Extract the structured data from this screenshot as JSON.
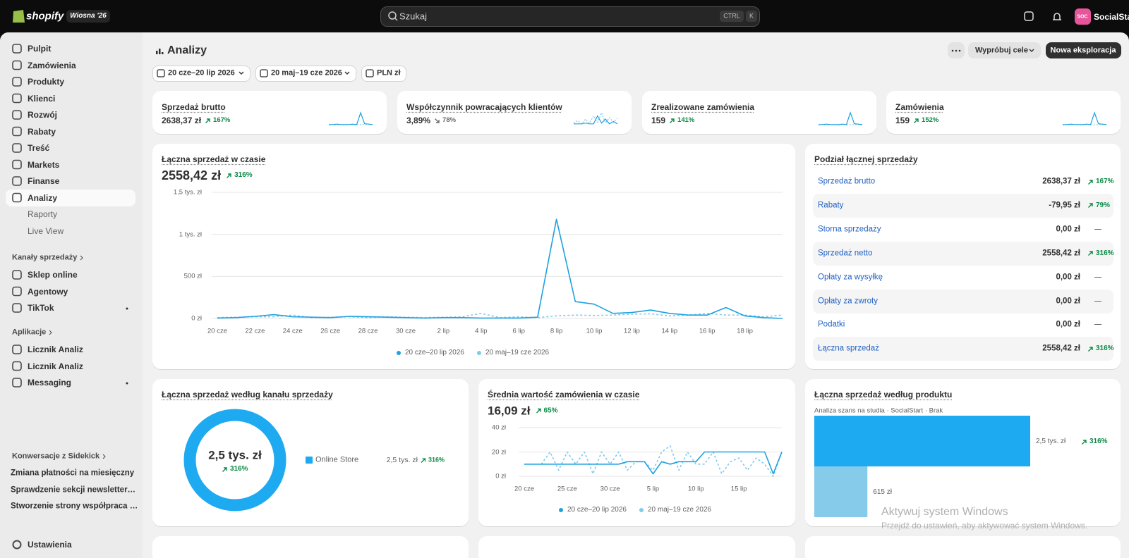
{
  "topbar": {
    "brand": "shopify",
    "badge": "Wiosna '26",
    "search": "Szukaj",
    "shortcut": [
      "CTRL",
      "K"
    ],
    "avatar": "SOC",
    "store": "SocialStart"
  },
  "sidebar": {
    "items": [
      "Pulpit",
      "Zamówienia",
      "Produkty",
      "Klienci",
      "Rozwój",
      "Rabaty",
      "Treść",
      "Markets",
      "Finanse",
      "Analizy"
    ],
    "active_item": 9,
    "subitems": [
      "Raporty",
      "Live View"
    ],
    "channels_title": "Kanały sprzedaży",
    "channels": [
      "Sklep online",
      "Agentowy",
      "TikTok"
    ],
    "apps_title": "Aplikacje",
    "apps": [
      "Licznik Analiz",
      "Licznik Analiz",
      "Messaging"
    ],
    "sidekick_title": "Konwersacje z Sidekick",
    "sidekick": [
      "Zmiana płatności na miesięczny",
      "Sprawdzenie sekcji newsletter…",
      "Stworzenie strony współpraca …"
    ],
    "settings": "Ustawienia"
  },
  "header": {
    "title": "Analizy",
    "goals": "Wypróbuj cele",
    "new": "Nowa eksploracja",
    "filters": [
      "20 cze–20 lip 2026",
      "20 maj–19 cze 2026",
      "PLN zł"
    ]
  },
  "kpis": [
    {
      "label": "Sprzedaż brutto",
      "value": "2638,37 zł",
      "change": "167%",
      "trend": "up",
      "spark": [
        2,
        2,
        3,
        2,
        2,
        2,
        3,
        2,
        30,
        4,
        3,
        2
      ],
      "spark_prev": [
        1,
        2,
        1,
        2,
        1,
        2,
        1,
        2,
        2,
        2,
        3,
        2
      ]
    },
    {
      "label": "Współczynnik powracających klientów",
      "value": "3,89%",
      "change": "78%",
      "trend": "down",
      "spark": [
        2,
        2,
        2,
        3,
        2,
        2,
        12,
        3,
        8,
        2,
        5,
        2
      ],
      "spark_prev": [
        3,
        6,
        2,
        8,
        3,
        12,
        4,
        16,
        3,
        10,
        4,
        9
      ]
    },
    {
      "label": "Zrealizowane zamówienia",
      "value": "159",
      "change": "141%",
      "trend": "up",
      "spark": [
        2,
        2,
        3,
        2,
        2,
        2,
        3,
        2,
        30,
        4,
        3,
        2
      ],
      "spark_prev": [
        1,
        2,
        1,
        2,
        1,
        1,
        2,
        2,
        1,
        2,
        2,
        1
      ]
    },
    {
      "label": "Zamówienia",
      "value": "159",
      "change": "152%",
      "trend": "up",
      "spark": [
        2,
        2,
        3,
        2,
        2,
        2,
        3,
        2,
        30,
        4,
        3,
        2
      ],
      "spark_prev": [
        1,
        2,
        1,
        2,
        1,
        1,
        2,
        2,
        1,
        2,
        2,
        1
      ]
    }
  ],
  "sales_over_time": {
    "type": "line",
    "title": "Łączna sprzedaż w czasie",
    "total": "2558,42 zł",
    "change": "316%",
    "trend": "up",
    "categories": [
      "20 cze",
      null,
      "22 cze",
      null,
      "24 cze",
      null,
      "26 cze",
      null,
      "28 cze",
      null,
      "30 cze",
      null,
      "2 lip",
      null,
      "4 lip",
      null,
      "6 lip",
      null,
      "8 lip",
      null,
      "10 lip",
      null,
      "12 lip",
      null,
      "14 lip",
      null,
      "16 lip",
      null,
      "18 lip",
      null,
      null
    ],
    "series": [
      {
        "name": "20 cze–20 lip 2026",
        "color": "#1ea1e0",
        "dash": false,
        "values": [
          5,
          10,
          25,
          45,
          20,
          15,
          10,
          25,
          20,
          15,
          10,
          5,
          10,
          10,
          5,
          5,
          5,
          15,
          1180,
          200,
          170,
          60,
          70,
          100,
          60,
          40,
          40,
          130,
          30,
          10,
          0
        ]
      },
      {
        "name": "20 maj–19 cze 2026",
        "color": "#7fcbea",
        "dash": true,
        "values": [
          10,
          15,
          20,
          20,
          40,
          10,
          15,
          20,
          10,
          20,
          15,
          10,
          15,
          20,
          60,
          10,
          20,
          10,
          30,
          40,
          35,
          40,
          50,
          55,
          30,
          40,
          60,
          40,
          40,
          20,
          40
        ]
      }
    ],
    "ylim": [
      0,
      1500
    ],
    "yticks": [
      {
        "value": 0,
        "label": "0 zł"
      },
      {
        "value": 500,
        "label": "500 zł"
      },
      {
        "value": 1000,
        "label": "1 tys. zł"
      },
      {
        "value": 1500,
        "label": "1,5 tys. zł"
      }
    ],
    "grid": true
  },
  "breakdown": {
    "title": "Podział łącznej sprzedaży",
    "rows": [
      {
        "label": "Sprzedaż brutto",
        "value": "2638,37 zł",
        "change": "167%",
        "trend": "up"
      },
      {
        "label": "Rabaty",
        "value": "-79,95 zł",
        "change": "79%",
        "trend": "up"
      },
      {
        "label": "Storna sprzedaży",
        "value": "0,00 zł",
        "change": "—"
      },
      {
        "label": "Sprzedaż netto",
        "value": "2558,42 zł",
        "change": "316%",
        "trend": "up"
      },
      {
        "label": "Opłaty za wysyłkę",
        "value": "0,00 zł",
        "change": "—"
      },
      {
        "label": "Opłaty za zwroty",
        "value": "0,00 zł",
        "change": "—"
      },
      {
        "label": "Podatki",
        "value": "0,00 zł",
        "change": "—"
      },
      {
        "label": "Łączna sprzedaż",
        "value": "2558,42 zł",
        "change": "316%",
        "trend": "up"
      }
    ]
  },
  "by_channel": {
    "type": "pie",
    "title": "Łączna sprzedaż według kanału sprzedaży",
    "total": "2,5 tys. zł",
    "change": "316%",
    "trend": "up",
    "categories": [
      "Online Store"
    ],
    "values": [
      2500
    ],
    "value_labels": [
      "2,5 tys. zł"
    ],
    "changes": [
      "316%"
    ],
    "colors": [
      "#1eaaf1"
    ]
  },
  "aov": {
    "type": "line",
    "title": "Średnia wartość zamówienia w czasie",
    "total": "16,09 zł",
    "change": "65%",
    "trend": "up",
    "categories": [
      "20 cze",
      null,
      null,
      null,
      null,
      "25 cze",
      null,
      null,
      null,
      null,
      "30 cze",
      null,
      null,
      null,
      null,
      "5 lip",
      null,
      null,
      null,
      null,
      "10 lip",
      null,
      null,
      null,
      null,
      "15 lip",
      null,
      null,
      null,
      null,
      null
    ],
    "series": [
      {
        "name": "20 cze–20 lip 2026",
        "color": "#1ea1e0",
        "dash": false,
        "values": [
          10,
          10,
          10,
          10,
          10,
          10,
          10,
          10,
          10,
          10,
          10,
          10,
          12,
          12,
          12,
          2,
          12,
          10,
          12,
          12,
          12,
          20,
          20,
          20,
          20,
          20,
          20,
          20,
          20,
          2,
          20
        ]
      },
      {
        "name": "20 maj–19 cze 2026",
        "color": "#7fcbea",
        "dash": true,
        "values": [
          10,
          10,
          10,
          20,
          5,
          20,
          10,
          20,
          2,
          20,
          10,
          20,
          5,
          12,
          12,
          5,
          20,
          25,
          5,
          20,
          10,
          10,
          20,
          2,
          12,
          15,
          5,
          15,
          10,
          0,
          20
        ]
      }
    ],
    "ylim": [
      0,
      40
    ],
    "yticks": [
      {
        "value": 0,
        "label": "0 zł"
      },
      {
        "value": 20,
        "label": "20 zł"
      },
      {
        "value": 40,
        "label": "40 zł"
      }
    ],
    "grid": true
  },
  "by_product": {
    "type": "bar",
    "orientation": "horizontal",
    "title": "Łączna sprzedaż według produktu",
    "subtitle": "Analiza szans na studia · SocialStart · Brak",
    "bars": [
      {
        "value": 2500,
        "label": "2,5 tys. zł",
        "color": "#1eaaf1",
        "change": "316%",
        "trend": "up"
      },
      {
        "value": 615,
        "label": "615 zł",
        "color": "#86ccea"
      }
    ]
  },
  "watermark": {
    "title": "Aktywuj system Windows",
    "text": "Przejdź do ustawień, aby aktywować system Windows."
  }
}
